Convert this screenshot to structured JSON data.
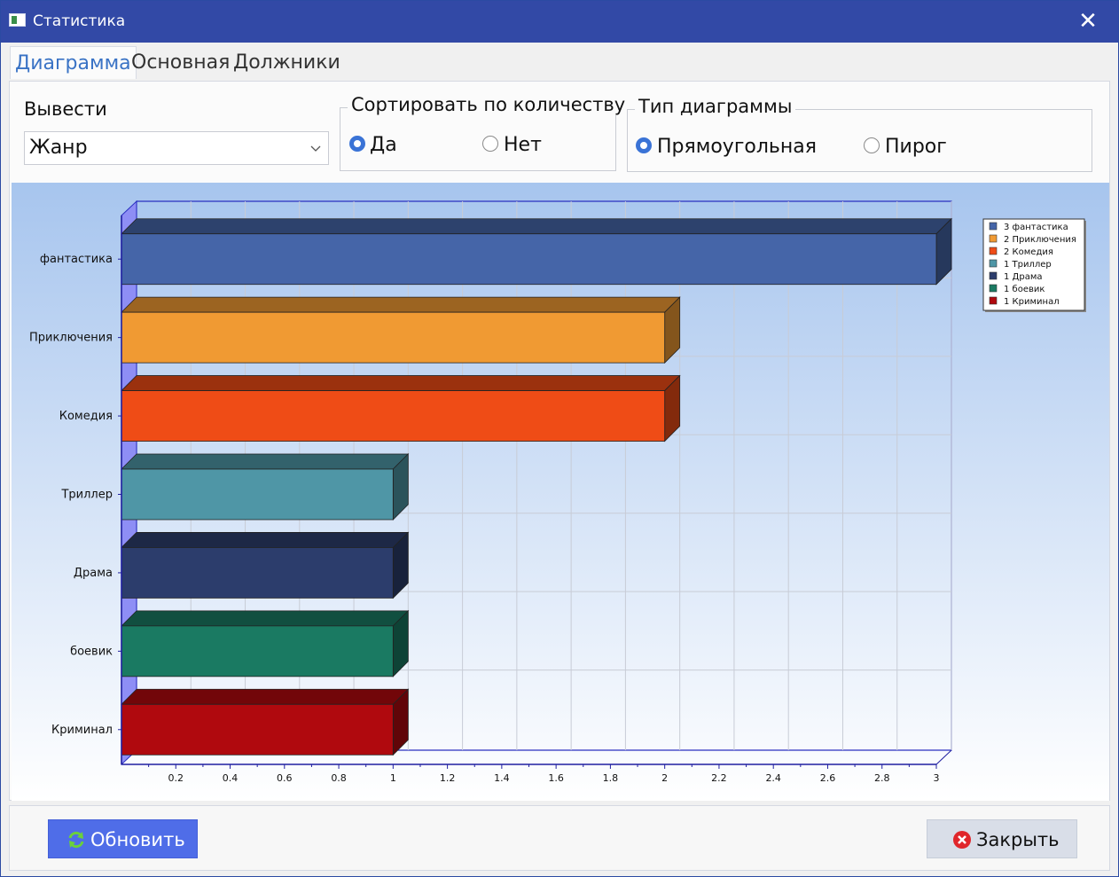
{
  "window": {
    "title": "Статистика",
    "close_glyph": "✕"
  },
  "tabs": [
    {
      "label": "Диаграмма",
      "active": true
    },
    {
      "label": "Основная",
      "active": false
    },
    {
      "label": "Должники",
      "active": false
    }
  ],
  "output": {
    "label": "Вывести",
    "selected": "Жанр"
  },
  "sort_group": {
    "title": "Сортировать по количеству",
    "options": [
      {
        "label": "Да",
        "checked": true
      },
      {
        "label": "Нет",
        "checked": false
      }
    ]
  },
  "chart_type_group": {
    "title": "Тип диаграммы",
    "options": [
      {
        "label": "Прямоугольная",
        "checked": true
      },
      {
        "label": "Пирог",
        "checked": false
      }
    ]
  },
  "buttons": {
    "refresh": {
      "label": "Обновить",
      "icon": "refresh-icon"
    },
    "close": {
      "label": "Закрыть",
      "icon": "close-circle-icon"
    }
  },
  "colors": {
    "accent": "#3a73d6",
    "titlebar": "#3249a6",
    "refresh_button": "#4f6de8"
  },
  "chart_data": {
    "type": "bar",
    "orientation": "horizontal",
    "categories": [
      "фантастика",
      "Приключения",
      "Комедия",
      "Триллер",
      "Драма",
      "боевик",
      "Криминал"
    ],
    "values": [
      3,
      2,
      2,
      1,
      1,
      1,
      1
    ],
    "colors": [
      "#4565a8",
      "#f09a33",
      "#ef4c16",
      "#4f96a6",
      "#2c3d6c",
      "#1a7a62",
      "#b0090e"
    ],
    "x_ticks": [
      "0.2",
      "0.4",
      "0.6",
      "0.8",
      "1",
      "1.2",
      "1.4",
      "1.6",
      "1.8",
      "2",
      "2.2",
      "2.4",
      "2.6",
      "2.8",
      "3"
    ],
    "xlim": [
      0,
      3
    ],
    "grid": true,
    "legend_position": "top-right",
    "legend": [
      "3 фантастика",
      "2 Приключения",
      "2 Комедия",
      "1 Триллер",
      "1 Драма",
      "1 боевик",
      "1 Криминал"
    ]
  }
}
